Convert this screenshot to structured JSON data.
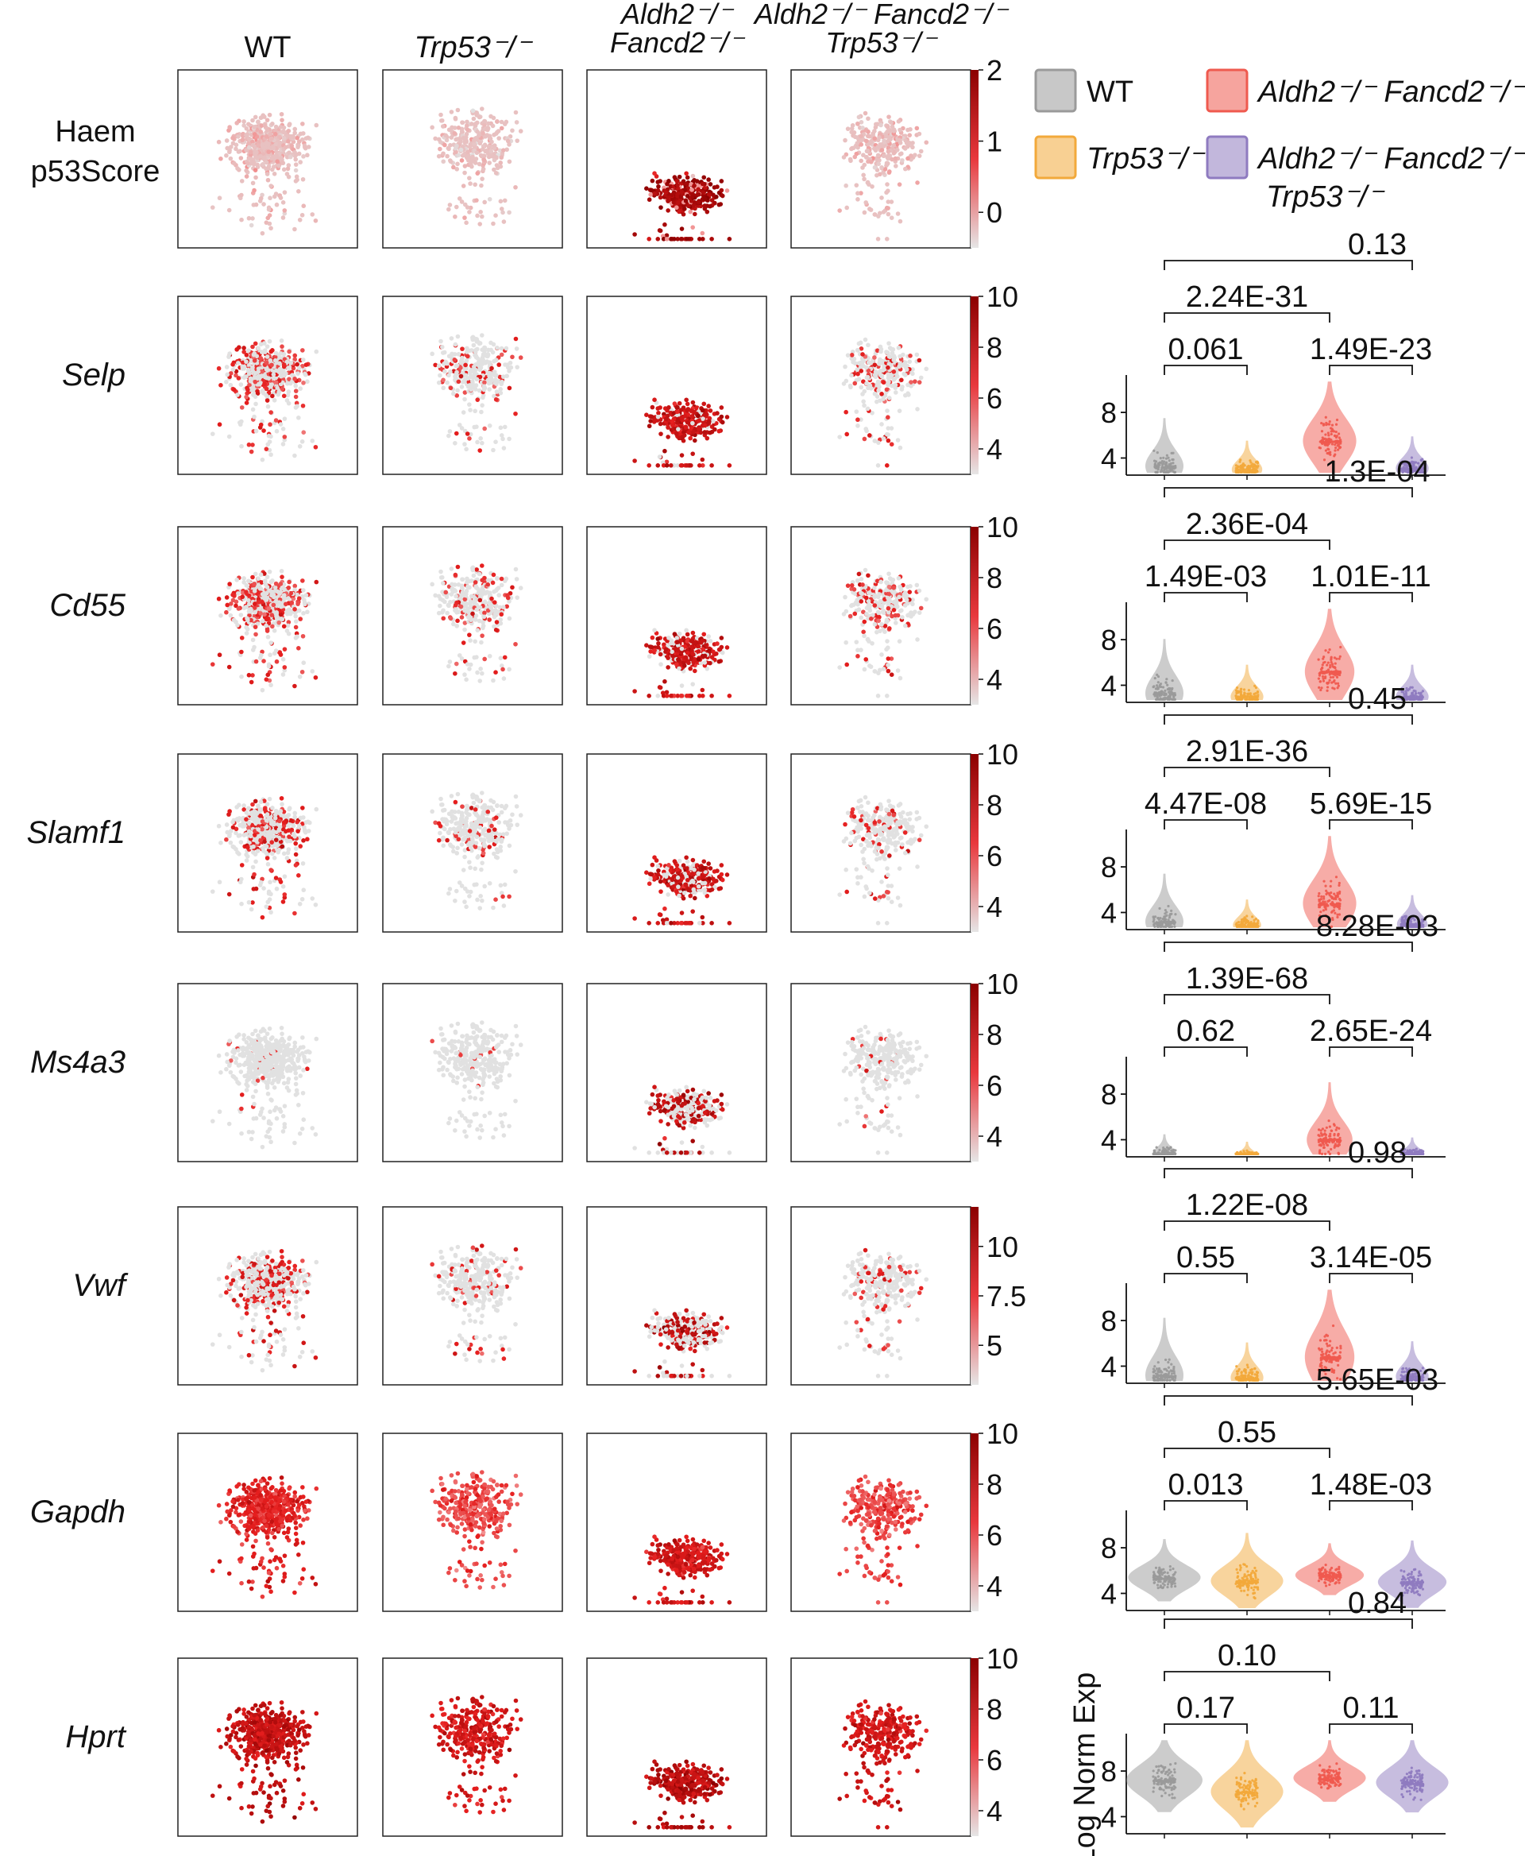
{
  "colors": {
    "wt": "#9a9a9a",
    "trp53": "#f2a93b",
    "adf": "#ef5a4f",
    "adft": "#8f7bc0",
    "feature_low": "#d9d9d9",
    "feature_high": "#8b0000"
  },
  "legend": {
    "items": [
      {
        "key": "wt",
        "label": "WT"
      },
      {
        "key": "adf",
        "label": "Aldh2⁻/⁻ Fancd2⁻/⁻"
      },
      {
        "key": "trp53",
        "label": "Trp53⁻/⁻"
      },
      {
        "key": "adft",
        "label": "Aldh2⁻/⁻ Fancd2⁻/⁻ Trp53⁻/⁻"
      }
    ]
  },
  "chart_data": [
    {
      "type": "scatter",
      "title": "Feature plots (UMAP) by genotype",
      "columns": [
        "WT",
        "Trp53⁻/⁻",
        "Aldh2⁻/⁻ Fancd2⁻/⁻",
        "Aldh2⁻/⁻ Fancd2⁻/⁻ Trp53⁻/⁻"
      ],
      "rows": [
        {
          "label": "Haem p53Score",
          "italic": false,
          "scale_ticks": [
            "2",
            "1",
            "0"
          ],
          "scale_range": [
            -0.5,
            2
          ]
        },
        {
          "label": "Selp",
          "italic": true,
          "scale_ticks": [
            "10",
            "8",
            "6",
            "4"
          ],
          "scale_range": [
            3,
            10
          ]
        },
        {
          "label": "Cd55",
          "italic": true,
          "scale_ticks": [
            "10",
            "8",
            "6",
            "4"
          ],
          "scale_range": [
            3,
            10
          ]
        },
        {
          "label": "Slamf1",
          "italic": true,
          "scale_ticks": [
            "10",
            "8",
            "6",
            "4"
          ],
          "scale_range": [
            3,
            10
          ]
        },
        {
          "label": "Ms4a3",
          "italic": true,
          "scale_ticks": [
            "10",
            "8",
            "6",
            "4"
          ],
          "scale_range": [
            3,
            10
          ]
        },
        {
          "label": "Vwf",
          "italic": true,
          "scale_ticks": [
            "10",
            "7.5",
            "5"
          ],
          "scale_range": [
            3,
            12
          ]
        },
        {
          "label": "Gapdh",
          "italic": true,
          "scale_ticks": [
            "10",
            "8",
            "6",
            "4"
          ],
          "scale_range": [
            3,
            10
          ]
        },
        {
          "label": "Hprt",
          "italic": true,
          "scale_ticks": [
            "10",
            "8",
            "6",
            "4"
          ],
          "scale_range": [
            3,
            10
          ]
        }
      ]
    },
    {
      "type": "violin",
      "ylabel": "Log Norm Exp",
      "groups": [
        "WT",
        "Trp53⁻/⁻",
        "Aldh2⁻/⁻ Fancd2⁻/⁻",
        "Aldh2⁻/⁻ Fancd2⁻/⁻ Trp53⁻/⁻"
      ],
      "yticks": [
        "8",
        "4"
      ],
      "ylim": [
        2.5,
        11
      ],
      "comparisons_order": [
        "WT vs Aldh2⁻/⁻ Fancd2⁻/⁻ Trp53⁻/⁻",
        "WT vs Aldh2⁻/⁻ Fancd2⁻/⁻",
        "WT vs Trp53⁻/⁻",
        "Aldh2⁻/⁻ Fancd2⁻/⁻ vs Aldh2⁻/⁻ Fancd2⁻/⁻ Trp53⁻/⁻"
      ],
      "panels": [
        {
          "gene": "Selp",
          "pvalues": [
            "0.13",
            "2.24E-31",
            "0.061",
            "1.49E-23"
          ]
        },
        {
          "gene": "Cd55",
          "pvalues": [
            "1.3E-04",
            "2.36E-04",
            "1.49E-03",
            "1.01E-11"
          ]
        },
        {
          "gene": "Slamf1",
          "pvalues": [
            "0.45",
            "2.91E-36",
            "4.47E-08",
            "5.69E-15"
          ]
        },
        {
          "gene": "Ms4a3",
          "pvalues": [
            "8.28E-03",
            "1.39E-68",
            "0.62",
            "2.65E-24"
          ]
        },
        {
          "gene": "Vwf",
          "pvalues": [
            "0.98",
            "1.22E-08",
            "0.55",
            "3.14E-05"
          ]
        },
        {
          "gene": "Gapdh",
          "pvalues": [
            "5.65E-03",
            "0.55",
            "0.013",
            "1.48E-03"
          ]
        },
        {
          "gene": "Hprt",
          "pvalues": [
            "0.84",
            "0.10",
            "0.17",
            "0.11"
          ]
        }
      ]
    }
  ]
}
